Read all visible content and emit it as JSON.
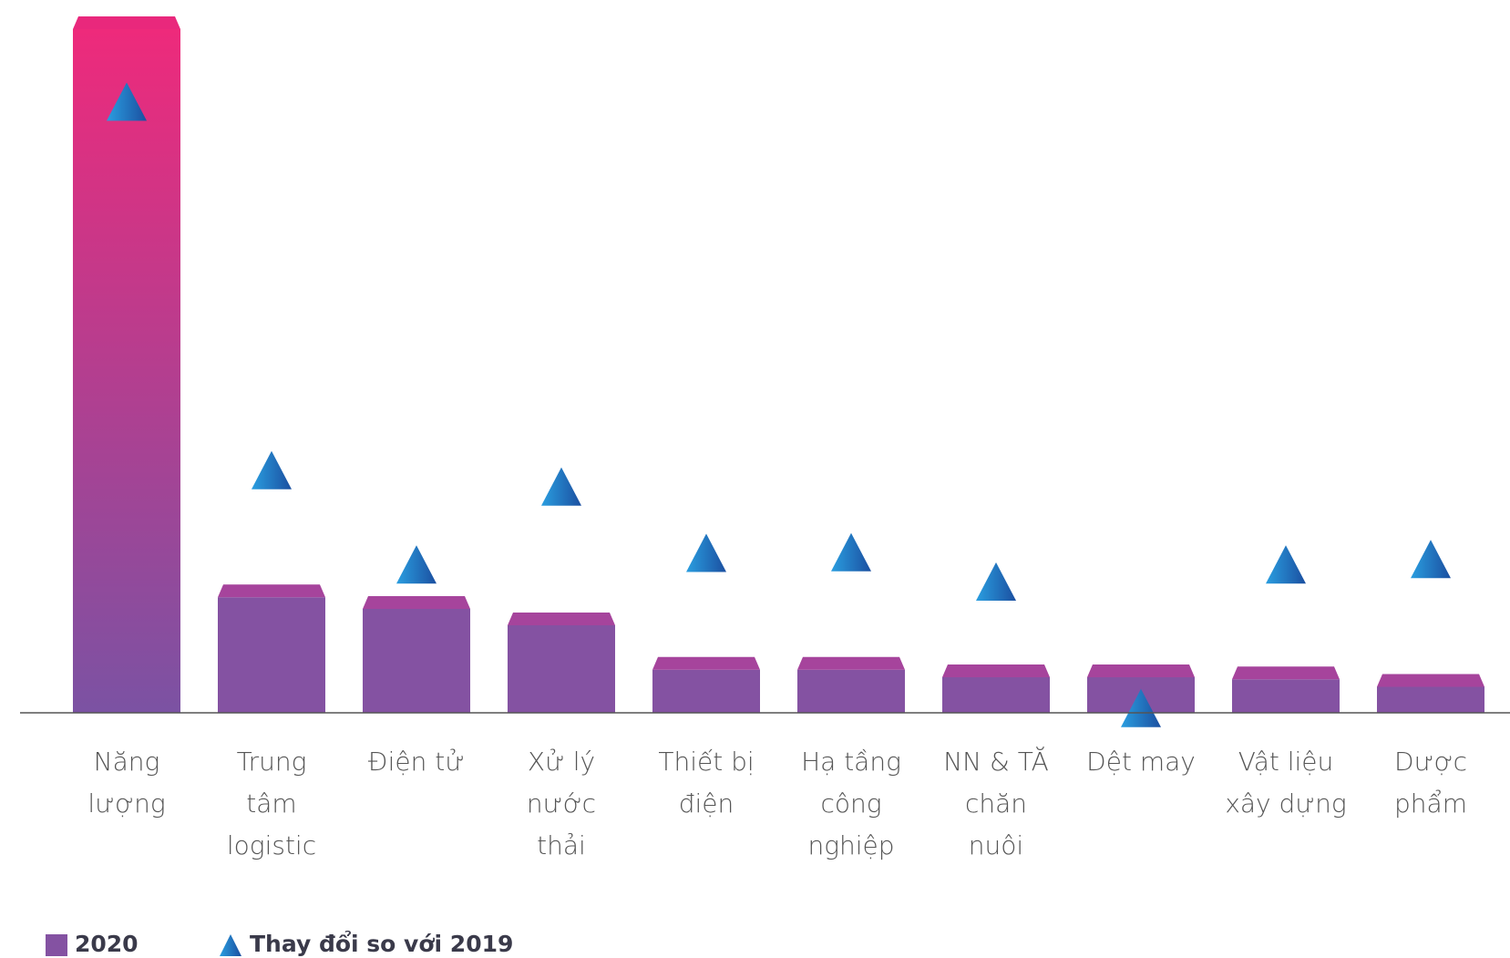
{
  "chart_data": {
    "type": "bar",
    "categories": [
      "Năng\nlượng",
      "Trung\ntâm\nlogistic",
      "Điện tử",
      "Xử lý\nnước\nthải",
      "Thiết bị\nđiện",
      "Hạ tầng\ncông\nnghiệp",
      "NN & TĂ\nchăn\nnuôi",
      "Dệt may",
      "Vật liệu\nxây dựng",
      "Dược\nphẩm"
    ],
    "series": [
      {
        "name": "2020",
        "color": "#8452a2",
        "values": [
          100,
          16.9,
          15.2,
          12.8,
          6.3,
          6.3,
          5.2,
          5.2,
          4.9,
          3.8
        ]
      },
      {
        "name": "Thay đổi so với 2019",
        "color": "#1e7bc8",
        "marker": "triangle",
        "values": [
          89.4,
          35.5,
          21.7,
          33.1,
          23.4,
          23.5,
          19.2,
          0.7,
          21.7,
          22.5
        ]
      }
    ],
    "ylim": [
      0,
      100
    ]
  }
}
